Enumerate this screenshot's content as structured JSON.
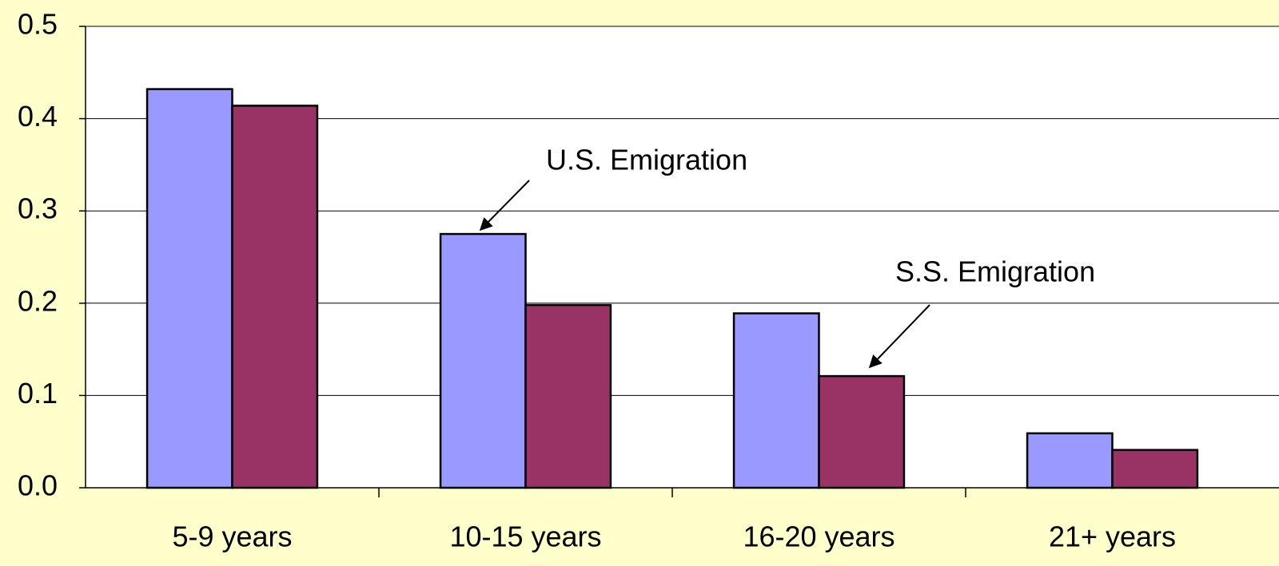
{
  "chart_data": {
    "type": "bar",
    "categories": [
      "5-9 years",
      "10-15 years",
      "16-20 years",
      "21+ years"
    ],
    "series": [
      {
        "color": "#9999ff",
        "values": [
          0.432,
          0.275,
          0.189,
          0.059
        ]
      },
      {
        "color": "#993366",
        "values": [
          0.414,
          0.198,
          0.121,
          0.041
        ]
      }
    ],
    "ylim": [
      0,
      0.5
    ],
    "yticks": [
      {
        "value": 0,
        "label": "0.0"
      },
      0.1,
      0.2,
      0.3,
      0.4,
      0.5
    ],
    "grid": true,
    "annotations": [
      {
        "text": "U.S. Emigration"
      },
      {
        "text": "S.S. Emigration"
      }
    ]
  }
}
